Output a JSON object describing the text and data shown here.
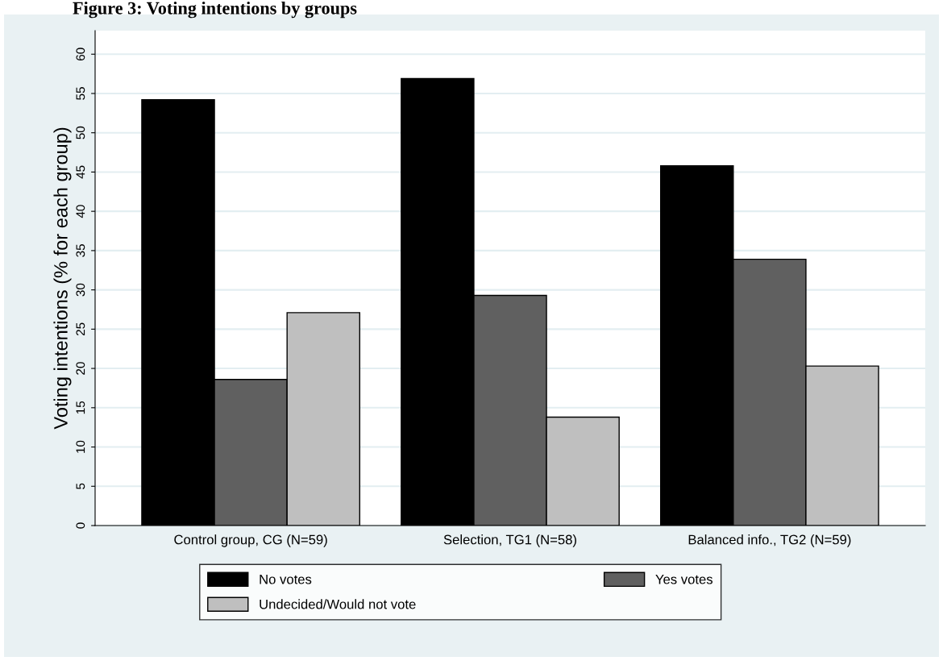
{
  "chart_data": {
    "type": "bar",
    "title": "Figure 3: Voting intentions by groups",
    "ylabel": "Voting intentions (% for each group)",
    "categories": [
      "Control group, CG (N=59)",
      "Selection, TG1 (N=58)",
      "Balanced info., TG2 (N=59)"
    ],
    "series": [
      {
        "name": "No votes",
        "color": "#000000",
        "values": [
          54.2,
          56.9,
          45.8
        ]
      },
      {
        "name": "Yes votes",
        "color": "#606060",
        "values": [
          18.6,
          29.3,
          33.9
        ]
      },
      {
        "name": "Undecided/Would not vote",
        "color": "#bfbfbf",
        "values": [
          27.1,
          13.8,
          20.3
        ]
      }
    ],
    "ylim": [
      0,
      63
    ],
    "yticks": [
      0,
      5,
      10,
      15,
      20,
      25,
      30,
      35,
      40,
      45,
      50,
      55,
      60
    ],
    "grid": "y",
    "legend": "bottom"
  }
}
